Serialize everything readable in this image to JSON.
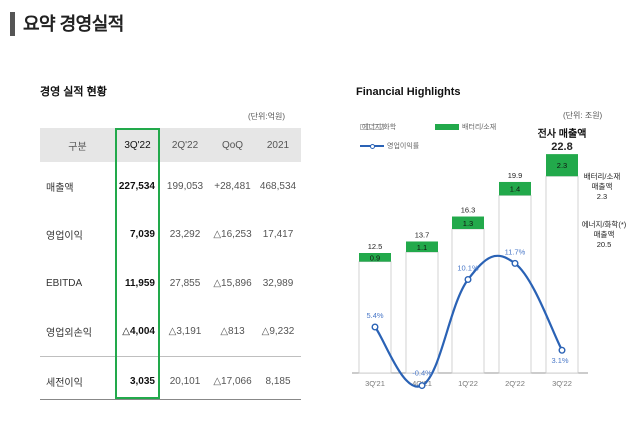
{
  "header": {
    "title": "요약 경영실적"
  },
  "table": {
    "title": "경영 실적 현황",
    "unit": "(단위:억원)",
    "columns": [
      "구분",
      "3Q'22",
      "2Q'22",
      "QoQ",
      "2021"
    ],
    "rows": [
      {
        "label": "매출액",
        "values": [
          "227,534",
          "199,053",
          "+28,481",
          "468,534"
        ]
      },
      {
        "label": "영업이익",
        "values": [
          "7,039",
          "23,292",
          "△16,253",
          "17,417"
        ]
      },
      {
        "label": "EBITDA",
        "values": [
          "11,959",
          "27,855",
          "△15,896",
          "32,989"
        ]
      },
      {
        "label": "영업외손익",
        "values": [
          "△4,004",
          "△3,191",
          "△813",
          "△9,232"
        ]
      },
      {
        "label": "세전이익",
        "values": [
          "3,035",
          "20,101",
          "△17,066",
          "8,185"
        ]
      }
    ]
  },
  "highlights": {
    "title": "Financial Highlights",
    "unit": "(단위: 조원)",
    "legend": {
      "energy": "에너지/화학",
      "battery": "배터리/소재",
      "margin": "영업이익률"
    },
    "total_label": "전사 매출액",
    "annotation_battery": [
      "배터리/소재",
      "매출액",
      "2.3"
    ],
    "annotation_energy": [
      "에너지/화학(*)",
      "매출액",
      "20.5"
    ]
  },
  "chart_data": {
    "type": "bar",
    "categories": [
      "3Q'21",
      "4Q'21",
      "1Q'22",
      "2Q'22",
      "3Q'22"
    ],
    "series": [
      {
        "name": "에너지/화학",
        "values": [
          11.6,
          12.6,
          15.0,
          18.5,
          20.5
        ]
      },
      {
        "name": "배터리/소재",
        "values": [
          0.9,
          1.1,
          1.3,
          1.4,
          2.3
        ]
      },
      {
        "name": "영업이익률",
        "type": "line",
        "values": [
          5.4,
          -0.4,
          10.1,
          11.7,
          3.1
        ],
        "labels": [
          "5.4%",
          "-0.4%",
          "10.1%",
          "11.7%",
          "3.1%"
        ]
      }
    ],
    "totals": [
      12.5,
      13.7,
      16.3,
      19.9,
      22.8
    ],
    "total_labels": [
      "12.5",
      "13.7",
      "16.3",
      "19.9",
      "22.8"
    ],
    "battery_labels": [
      "0.9",
      "1.1",
      "1.3",
      "1.4",
      "2.3"
    ],
    "xlabel": "",
    "ylabel": "",
    "colors": {
      "energy": "#ffffff",
      "battery": "#22a94b",
      "line": "#2a62b5"
    }
  }
}
